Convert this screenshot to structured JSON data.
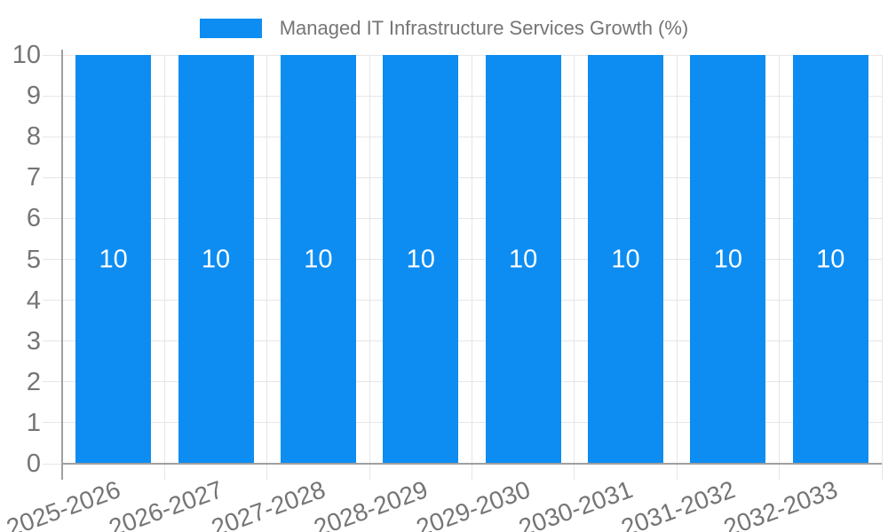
{
  "chart_data": {
    "type": "bar",
    "title": "Managed IT Infrastructure Services Growth (%)",
    "legend": {
      "position": "top",
      "label": "Managed IT Infrastructure Services Growth (%)"
    },
    "categories": [
      "2025-2026",
      "2026-2027",
      "2027-2028",
      "2028-2029",
      "2029-2030",
      "2030-2031",
      "2031-2032",
      "2032-2033"
    ],
    "values": [
      10,
      10,
      10,
      10,
      10,
      10,
      10,
      10
    ],
    "bar_labels": [
      "10",
      "10",
      "10",
      "10",
      "10",
      "10",
      "10",
      "10"
    ],
    "xlabel": "",
    "ylabel": "",
    "ylim": [
      0,
      10
    ],
    "yticks": [
      0,
      1,
      2,
      3,
      4,
      5,
      6,
      7,
      8,
      9,
      10
    ],
    "grid": true,
    "colors": {
      "bar": "#0d8df2",
      "grid": "#e6e6e6",
      "axis": "#9f9f9f",
      "tick_text": "#757575",
      "legend_text": "#757575",
      "bar_label": "#ffffff"
    }
  }
}
